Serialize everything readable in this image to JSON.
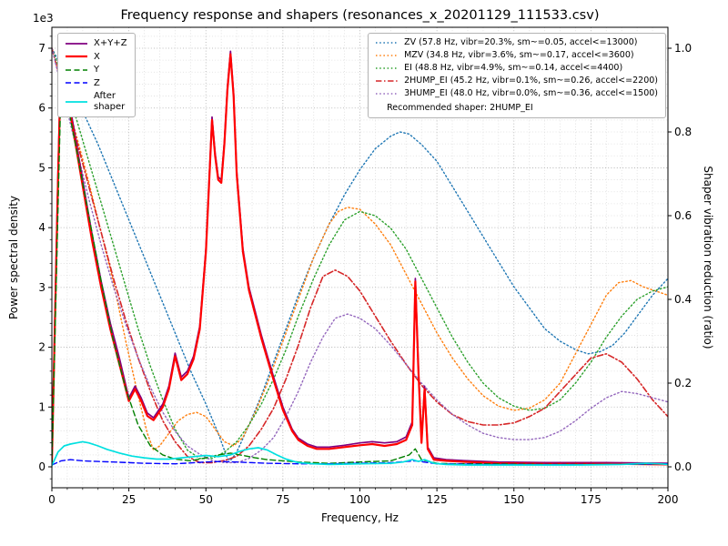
{
  "title": "Frequency response and shapers (resonances_x_20201129_111533.csv)",
  "axes": {
    "x": {
      "label": "Frequency, Hz",
      "min": 0,
      "max": 200,
      "ticks": [
        0,
        25,
        50,
        75,
        100,
        125,
        150,
        175,
        200
      ],
      "minor_step": 5
    },
    "y_left": {
      "label": "Power spectral density",
      "offset_text": "1e3",
      "min": -0.35,
      "max": 7.35,
      "ticks": [
        0,
        1,
        2,
        3,
        4,
        5,
        6,
        7
      ],
      "minor_step": 0.2
    },
    "y_right": {
      "label": "Shaper vibration reduction (ratio)",
      "min": -0.05,
      "max": 1.05,
      "ticks": [
        0.0,
        0.2,
        0.4,
        0.6,
        0.8,
        1.0
      ],
      "tick_labels": [
        "0.0",
        "0.2",
        "0.4",
        "0.6",
        "0.8",
        "1.0"
      ]
    }
  },
  "chart_data": {
    "type": "line",
    "y_left_unit": "1e3",
    "grid": "major+minor",
    "recommendation": "Recommended shaper: 2HUMP_EI",
    "psd_series": [
      {
        "id": "xyz",
        "label": "X+Y+Z",
        "color": "#800080",
        "dash": "solid",
        "width": 1.7,
        "axis": "left",
        "x": [
          0,
          2,
          3,
          4,
          6,
          8,
          10,
          13,
          16,
          19,
          22,
          25,
          27,
          29,
          31,
          33,
          36,
          38,
          40,
          42,
          44,
          46,
          48,
          50,
          52,
          53,
          54,
          55,
          56,
          57,
          58,
          59,
          60,
          62,
          64,
          66,
          68,
          70,
          72,
          75,
          78,
          80,
          83,
          86,
          90,
          95,
          100,
          104,
          108,
          112,
          115,
          117,
          118,
          119,
          120,
          121,
          122,
          124,
          128,
          135,
          145,
          160,
          180,
          200
        ],
        "y": [
          0.2,
          5.0,
          7.0,
          6.8,
          6.0,
          5.4,
          4.8,
          3.9,
          3.1,
          2.4,
          1.8,
          1.15,
          1.35,
          1.15,
          0.9,
          0.82,
          1.05,
          1.35,
          1.9,
          1.5,
          1.6,
          1.85,
          2.35,
          3.65,
          5.85,
          5.25,
          4.85,
          4.8,
          5.45,
          6.35,
          6.95,
          6.25,
          4.95,
          3.65,
          3.0,
          2.6,
          2.2,
          1.85,
          1.5,
          1.0,
          0.63,
          0.48,
          0.38,
          0.33,
          0.33,
          0.36,
          0.4,
          0.42,
          0.4,
          0.42,
          0.5,
          0.75,
          3.15,
          1.65,
          0.45,
          1.35,
          0.33,
          0.15,
          0.12,
          0.1,
          0.08,
          0.07,
          0.07,
          0.06
        ]
      },
      {
        "id": "x",
        "label": "X",
        "color": "#ff0000",
        "dash": "solid",
        "width": 2.2,
        "axis": "left",
        "x": [
          0,
          2,
          3,
          4,
          6,
          8,
          10,
          13,
          16,
          19,
          22,
          25,
          27,
          29,
          31,
          33,
          36,
          38,
          40,
          42,
          44,
          46,
          48,
          50,
          52,
          53,
          54,
          55,
          56,
          57,
          58,
          59,
          60,
          62,
          64,
          66,
          68,
          70,
          72,
          75,
          78,
          80,
          83,
          86,
          90,
          95,
          100,
          104,
          108,
          112,
          115,
          117,
          118,
          119,
          120,
          121,
          122,
          124,
          128,
          135,
          145,
          160,
          180,
          200
        ],
        "y": [
          0.05,
          4.8,
          6.9,
          6.7,
          5.9,
          5.3,
          4.7,
          3.8,
          3.0,
          2.3,
          1.7,
          1.1,
          1.3,
          1.1,
          0.85,
          0.78,
          1.0,
          1.3,
          1.85,
          1.45,
          1.55,
          1.8,
          2.3,
          3.6,
          5.8,
          5.2,
          4.8,
          4.75,
          5.4,
          6.3,
          6.9,
          6.2,
          4.9,
          3.6,
          2.95,
          2.55,
          2.15,
          1.8,
          1.45,
          0.95,
          0.6,
          0.45,
          0.35,
          0.3,
          0.3,
          0.33,
          0.36,
          0.38,
          0.35,
          0.38,
          0.45,
          0.7,
          3.1,
          1.6,
          0.4,
          1.3,
          0.3,
          0.12,
          0.1,
          0.08,
          0.06,
          0.05,
          0.05,
          0.04
        ]
      },
      {
        "id": "y",
        "label": "Y",
        "color": "#008000",
        "dash": "dashed",
        "width": 1.4,
        "axis": "left",
        "x": [
          0,
          3,
          5,
          8,
          12,
          16,
          20,
          24,
          28,
          32,
          36,
          40,
          45,
          50,
          54,
          58,
          62,
          66,
          70,
          75,
          80,
          90,
          100,
          110,
          116,
          118,
          120,
          125,
          130,
          140,
          160,
          180,
          200
        ],
        "y": [
          0.05,
          6.5,
          6.1,
          5.3,
          4.2,
          3.1,
          2.1,
          1.3,
          0.7,
          0.35,
          0.2,
          0.13,
          0.1,
          0.15,
          0.2,
          0.23,
          0.19,
          0.15,
          0.12,
          0.1,
          0.08,
          0.06,
          0.08,
          0.1,
          0.2,
          0.3,
          0.12,
          0.06,
          0.05,
          0.05,
          0.04,
          0.04,
          0.05
        ]
      },
      {
        "id": "z",
        "label": "Z",
        "color": "#0000ff",
        "dash": "dashed",
        "width": 1.4,
        "axis": "left",
        "x": [
          0,
          3,
          6,
          10,
          15,
          20,
          30,
          40,
          50,
          55,
          60,
          70,
          80,
          90,
          100,
          110,
          118,
          125,
          140,
          160,
          180,
          200
        ],
        "y": [
          0.03,
          0.1,
          0.12,
          0.1,
          0.09,
          0.08,
          0.06,
          0.05,
          0.08,
          0.09,
          0.08,
          0.06,
          0.05,
          0.05,
          0.06,
          0.07,
          0.1,
          0.05,
          0.04,
          0.04,
          0.04,
          0.05
        ]
      },
      {
        "id": "after_shaper",
        "label": "After\nshaper",
        "color": "#00e0e0",
        "dash": "solid",
        "width": 1.7,
        "axis": "left",
        "x": [
          0,
          2,
          4,
          6,
          8,
          10,
          12,
          15,
          18,
          22,
          26,
          30,
          34,
          38,
          42,
          46,
          50,
          54,
          58,
          61,
          64,
          67,
          70,
          73,
          76,
          80,
          85,
          90,
          100,
          110,
          114,
          117,
          119,
          121,
          124,
          128,
          135,
          150,
          170,
          185,
          193,
          197,
          200
        ],
        "y": [
          0.02,
          0.25,
          0.35,
          0.38,
          0.4,
          0.42,
          0.4,
          0.35,
          0.29,
          0.23,
          0.18,
          0.15,
          0.13,
          0.13,
          0.15,
          0.17,
          0.19,
          0.17,
          0.2,
          0.26,
          0.3,
          0.32,
          0.28,
          0.2,
          0.13,
          0.07,
          0.05,
          0.04,
          0.05,
          0.06,
          0.08,
          0.12,
          0.09,
          0.12,
          0.06,
          0.04,
          0.03,
          0.03,
          0.03,
          0.04,
          0.06,
          0.05,
          0.04
        ]
      }
    ],
    "shaper_series": [
      {
        "id": "zv",
        "label": "ZV (57.8 Hz, vibr=20.3%, sm~=0.05, accel<=13000)",
        "color": "#1f77b4",
        "dash": "dotted",
        "width": 1.4,
        "axis": "right",
        "x": [
          0,
          5,
          10,
          15,
          20,
          25,
          30,
          35,
          40,
          45,
          50,
          54,
          57,
          58,
          60,
          64,
          68,
          72,
          76,
          80,
          85,
          90,
          95,
          100,
          105,
          110,
          113,
          116,
          120,
          125,
          130,
          135,
          140,
          145,
          150,
          155,
          160,
          165,
          170,
          174,
          178,
          182,
          186,
          190,
          195,
          200
        ],
        "y": [
          1.0,
          0.93,
          0.85,
          0.77,
          0.68,
          0.59,
          0.5,
          0.41,
          0.32,
          0.23,
          0.15,
          0.08,
          0.02,
          0.015,
          0.035,
          0.1,
          0.17,
          0.25,
          0.33,
          0.41,
          0.5,
          0.58,
          0.65,
          0.71,
          0.76,
          0.79,
          0.8,
          0.795,
          0.77,
          0.73,
          0.67,
          0.61,
          0.55,
          0.49,
          0.43,
          0.38,
          0.33,
          0.3,
          0.28,
          0.27,
          0.275,
          0.29,
          0.32,
          0.36,
          0.41,
          0.45
        ]
      },
      {
        "id": "mzv",
        "label": "MZV (34.8 Hz, vibr=3.6%, sm~=0.17, accel<=3600)",
        "color": "#ff7f0e",
        "dash": "dotted",
        "width": 1.4,
        "axis": "right",
        "x": [
          0,
          4,
          8,
          12,
          16,
          20,
          24,
          28,
          31,
          33,
          35,
          38,
          41,
          44,
          47,
          50,
          53,
          56,
          59,
          62,
          66,
          70,
          75,
          80,
          85,
          90,
          93,
          96,
          100,
          105,
          110,
          115,
          120,
          125,
          130,
          135,
          140,
          145,
          150,
          155,
          160,
          165,
          170,
          175,
          180,
          184,
          188,
          192,
          196,
          200
        ],
        "y": [
          1.0,
          0.9,
          0.79,
          0.68,
          0.56,
          0.44,
          0.3,
          0.17,
          0.08,
          0.04,
          0.05,
          0.08,
          0.11,
          0.125,
          0.13,
          0.12,
          0.09,
          0.06,
          0.05,
          0.07,
          0.13,
          0.2,
          0.3,
          0.4,
          0.5,
          0.58,
          0.61,
          0.62,
          0.615,
          0.58,
          0.53,
          0.46,
          0.39,
          0.32,
          0.26,
          0.21,
          0.17,
          0.145,
          0.135,
          0.14,
          0.16,
          0.2,
          0.27,
          0.34,
          0.41,
          0.44,
          0.445,
          0.43,
          0.42,
          0.41
        ]
      },
      {
        "id": "ei",
        "label": "EI (48.8 Hz, vibr=4.9%, sm~=0.14, accel<=4400)",
        "color": "#2ca02c",
        "dash": "dotted",
        "width": 1.4,
        "axis": "right",
        "x": [
          0,
          4,
          8,
          12,
          16,
          20,
          24,
          28,
          32,
          36,
          40,
          44,
          48,
          52,
          56,
          60,
          64,
          68,
          72,
          76,
          80,
          85,
          90,
          95,
          100,
          105,
          110,
          115,
          120,
          125,
          130,
          135,
          140,
          145,
          150,
          155,
          160,
          165,
          170,
          175,
          180,
          185,
          190,
          195,
          200
        ],
        "y": [
          1.0,
          0.92,
          0.83,
          0.73,
          0.63,
          0.53,
          0.43,
          0.33,
          0.24,
          0.16,
          0.09,
          0.04,
          0.02,
          0.02,
          0.035,
          0.06,
          0.1,
          0.15,
          0.21,
          0.28,
          0.36,
          0.45,
          0.53,
          0.59,
          0.61,
          0.6,
          0.57,
          0.52,
          0.45,
          0.38,
          0.31,
          0.25,
          0.2,
          0.165,
          0.145,
          0.135,
          0.14,
          0.16,
          0.2,
          0.25,
          0.31,
          0.36,
          0.4,
          0.42,
          0.43
        ]
      },
      {
        "id": "2hump_ei",
        "label": "2HUMP_EI (45.2 Hz, vibr=0.1%, sm~=0.26, accel<=2200)",
        "color": "#d62728",
        "dash": "dashdot",
        "width": 1.6,
        "axis": "right",
        "x": [
          0,
          4,
          8,
          12,
          16,
          20,
          24,
          28,
          32,
          36,
          40,
          44,
          48,
          52,
          56,
          60,
          64,
          68,
          72,
          76,
          80,
          84,
          88,
          92,
          96,
          100,
          105,
          110,
          115,
          120,
          125,
          130,
          135,
          140,
          145,
          150,
          155,
          160,
          165,
          170,
          175,
          180,
          185,
          190,
          195,
          200
        ],
        "y": [
          1.0,
          0.89,
          0.78,
          0.67,
          0.56,
          0.45,
          0.35,
          0.26,
          0.18,
          0.11,
          0.06,
          0.025,
          0.01,
          0.01,
          0.015,
          0.025,
          0.05,
          0.09,
          0.14,
          0.21,
          0.29,
          0.38,
          0.455,
          0.47,
          0.455,
          0.42,
          0.36,
          0.3,
          0.245,
          0.195,
          0.155,
          0.125,
          0.108,
          0.1,
          0.1,
          0.105,
          0.12,
          0.14,
          0.18,
          0.22,
          0.26,
          0.27,
          0.25,
          0.21,
          0.16,
          0.12
        ]
      },
      {
        "id": "3hump_ei",
        "label": "3HUMP_EI (48.0 Hz, vibr=0.0%, sm~=0.36, accel<=1500)",
        "color": "#9467bd",
        "dash": "dotted",
        "width": 1.4,
        "axis": "right",
        "x": [
          0,
          4,
          8,
          12,
          16,
          20,
          24,
          28,
          32,
          36,
          40,
          44,
          48,
          52,
          56,
          60,
          64,
          68,
          72,
          76,
          80,
          84,
          88,
          92,
          96,
          100,
          105,
          110,
          115,
          120,
          125,
          130,
          135,
          140,
          145,
          150,
          155,
          160,
          165,
          170,
          175,
          180,
          185,
          190,
          195,
          200
        ],
        "y": [
          1.0,
          0.88,
          0.76,
          0.64,
          0.53,
          0.43,
          0.34,
          0.26,
          0.19,
          0.13,
          0.085,
          0.05,
          0.03,
          0.015,
          0.01,
          0.01,
          0.02,
          0.04,
          0.07,
          0.12,
          0.18,
          0.25,
          0.31,
          0.355,
          0.365,
          0.355,
          0.33,
          0.29,
          0.245,
          0.2,
          0.16,
          0.125,
          0.1,
          0.08,
          0.07,
          0.065,
          0.065,
          0.07,
          0.085,
          0.11,
          0.14,
          0.165,
          0.18,
          0.175,
          0.165,
          0.155
        ]
      }
    ]
  }
}
